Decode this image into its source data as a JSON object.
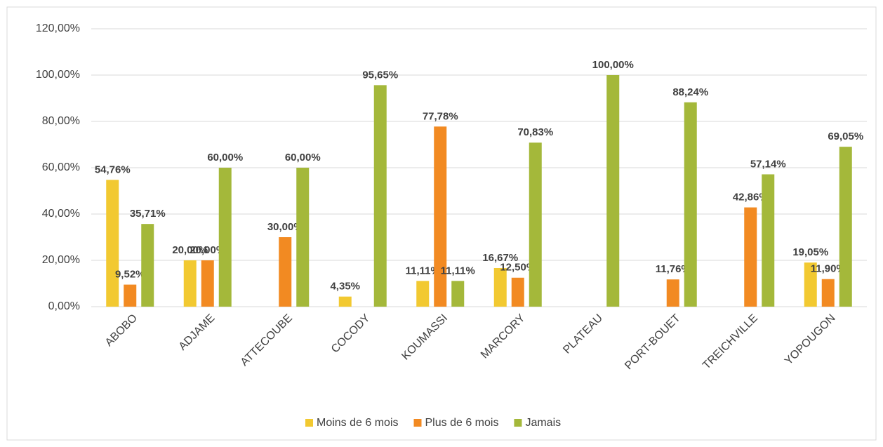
{
  "chart_data": {
    "type": "bar",
    "categories": [
      "ABOBO",
      "ADJAME",
      "ATTECOUBE",
      "COCODY",
      "KOUMASSI",
      "MARCORY",
      "PLATEAU",
      "PORT-BOUET",
      "TREICHVILLE",
      "YOPOUGON"
    ],
    "series": [
      {
        "name": "Moins de 6 mois",
        "color": "#f2c931",
        "values": [
          54.76,
          20.0,
          null,
          4.35,
          11.11,
          16.67,
          null,
          null,
          null,
          19.05
        ],
        "value_labels": [
          "54,76%",
          "20,00%",
          null,
          "4,35%",
          "11,11%",
          "16,67%",
          null,
          null,
          null,
          "19,05%"
        ]
      },
      {
        "name": "Plus de 6 mois",
        "color": "#f28a22",
        "values": [
          9.52,
          20.0,
          30.0,
          null,
          77.78,
          12.5,
          null,
          11.76,
          42.86,
          11.9
        ],
        "value_labels": [
          "9,52%",
          "20,00%",
          "30,00%",
          null,
          "77,78%",
          "12,50%",
          null,
          "11,76%",
          "42,86%",
          "11,90%"
        ]
      },
      {
        "name": "Jamais",
        "color": "#a4b83a",
        "values": [
          35.71,
          60.0,
          60.0,
          95.65,
          11.11,
          70.83,
          100.0,
          88.24,
          57.14,
          69.05
        ],
        "value_labels": [
          "35,71%",
          "60,00%",
          "60,00%",
          "95,65%",
          "11,11%",
          "70,83%",
          "100,00%",
          "88,24%",
          "57,14%",
          "69,05%"
        ]
      }
    ],
    "ylim": [
      0,
      120
    ],
    "yticks": [
      {
        "value": 0,
        "label": "0,00%"
      },
      {
        "value": 20,
        "label": "20,00%"
      },
      {
        "value": 40,
        "label": "40,00%"
      },
      {
        "value": 60,
        "label": "60,00%"
      },
      {
        "value": 80,
        "label": "80,00%"
      },
      {
        "value": 100,
        "label": "100,00%"
      },
      {
        "value": 120,
        "label": "120,00%"
      }
    ],
    "grid": true,
    "legend": "bottom"
  }
}
